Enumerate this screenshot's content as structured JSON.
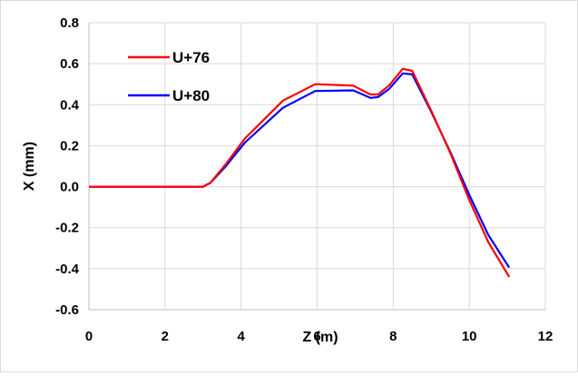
{
  "chart_data": {
    "type": "line",
    "title": "",
    "xlabel": "Z (m)",
    "ylabel": "X (mm)",
    "xlim": [
      0,
      12
    ],
    "ylim": [
      -0.6,
      0.8
    ],
    "xticks": [
      0,
      2,
      4,
      6,
      8,
      10,
      12
    ],
    "yticks": [
      -0.6,
      -0.4,
      -0.2,
      0.0,
      0.2,
      0.4,
      0.6,
      0.8
    ],
    "xtick_labels": [
      "0",
      "2",
      "4",
      "6",
      "8",
      "10",
      "12"
    ],
    "ytick_labels": [
      "-0.6",
      "-0.4",
      "-0.2",
      "0.0",
      "0.2",
      "0.4",
      "0.6",
      "0.8"
    ],
    "grid": true,
    "legend_position": "top-left",
    "series": [
      {
        "name": "U+76",
        "color": "#ff0000",
        "x": [
          0,
          3.0,
          3.2,
          3.6,
          4.1,
          5.1,
          5.95,
          6.95,
          7.4,
          7.6,
          7.9,
          8.25,
          8.5,
          9.0,
          9.5,
          10.0,
          10.5,
          11.05
        ],
        "y": [
          0.0,
          0.0,
          0.02,
          0.11,
          0.235,
          0.42,
          0.5,
          0.493,
          0.45,
          0.45,
          0.495,
          0.575,
          0.565,
          0.37,
          0.165,
          -0.065,
          -0.27,
          -0.44
        ]
      },
      {
        "name": "U+80",
        "color": "#0000ff",
        "x": [
          0,
          3.0,
          3.2,
          3.6,
          4.1,
          5.1,
          5.95,
          6.95,
          7.4,
          7.6,
          7.9,
          8.25,
          8.5,
          9.0,
          9.5,
          10.0,
          10.5,
          11.05
        ],
        "y": [
          0.0,
          0.0,
          0.02,
          0.1,
          0.215,
          0.385,
          0.467,
          0.47,
          0.433,
          0.437,
          0.478,
          0.553,
          0.548,
          0.365,
          0.17,
          -0.04,
          -0.235,
          -0.395
        ]
      }
    ]
  }
}
